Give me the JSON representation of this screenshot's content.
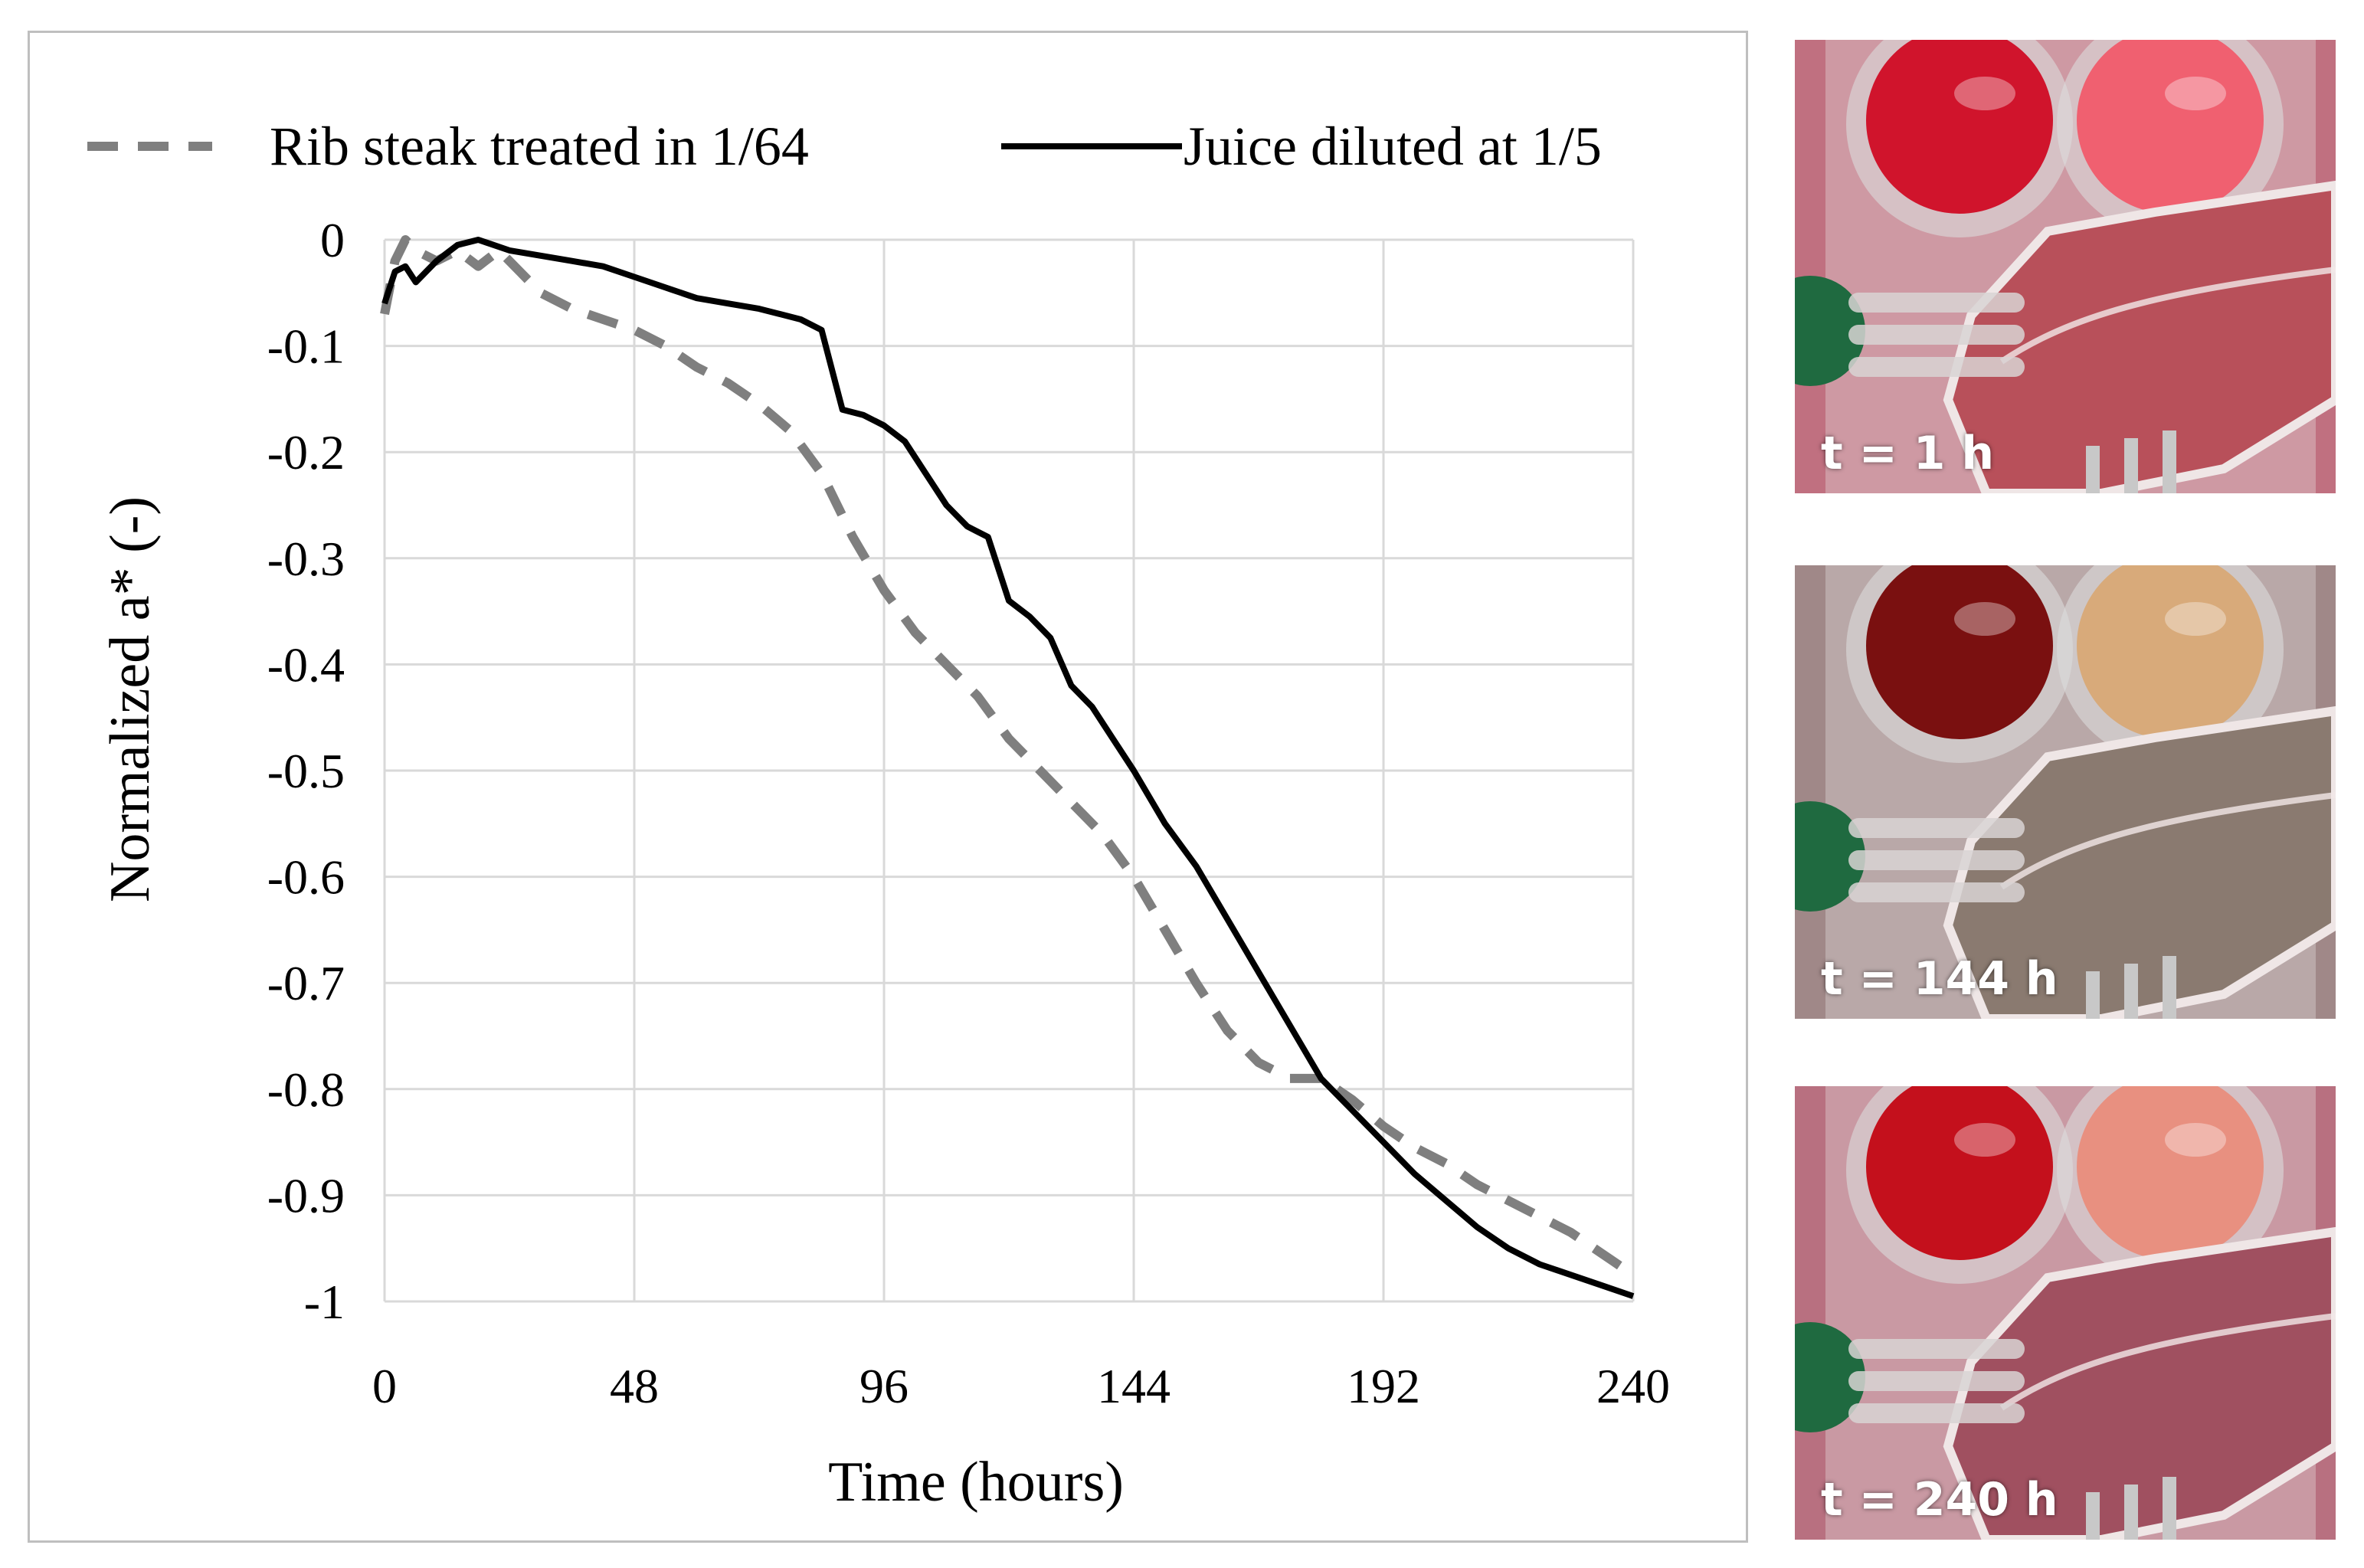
{
  "chart_data": {
    "type": "line",
    "title": "",
    "xlabel": "Time (hours)",
    "ylabel": "Normalized a* (-)",
    "xlim": [
      0,
      240
    ],
    "ylim": [
      -1,
      0
    ],
    "xticks": [
      0,
      48,
      96,
      144,
      192,
      240
    ],
    "yticks": [
      0,
      -0.1,
      -0.2,
      -0.3,
      -0.4,
      -0.5,
      -0.6,
      -0.7,
      -0.8,
      -0.9,
      -1
    ],
    "ytick_labels": [
      "0",
      "-0.1",
      "-0.2",
      "-0.3",
      "-0.4",
      "-0.5",
      "-0.6",
      "-0.7",
      "-0.8",
      "-0.9",
      "-1"
    ],
    "grid": true,
    "legend_position": "top",
    "series": [
      {
        "name": "Rib steak treated in 1/64",
        "style": "dashed",
        "color": "#7f7f7f",
        "x": [
          0,
          2,
          4,
          6,
          10,
          14,
          18,
          22,
          26,
          30,
          36,
          42,
          48,
          54,
          60,
          66,
          72,
          78,
          84,
          90,
          96,
          102,
          108,
          114,
          120,
          126,
          132,
          138,
          144,
          150,
          156,
          162,
          168,
          174,
          180,
          186,
          192,
          198,
          204,
          210,
          216,
          222,
          228,
          234,
          240
        ],
        "y": [
          -0.07,
          -0.02,
          0.0,
          -0.01,
          -0.02,
          -0.01,
          -0.025,
          -0.01,
          -0.03,
          -0.05,
          -0.065,
          -0.075,
          -0.085,
          -0.1,
          -0.12,
          -0.135,
          -0.155,
          -0.18,
          -0.22,
          -0.28,
          -0.33,
          -0.37,
          -0.4,
          -0.43,
          -0.47,
          -0.5,
          -0.53,
          -0.56,
          -0.6,
          -0.65,
          -0.7,
          -0.745,
          -0.775,
          -0.79,
          -0.79,
          -0.81,
          -0.835,
          -0.855,
          -0.87,
          -0.89,
          -0.905,
          -0.92,
          -0.935,
          -0.955,
          -0.975
        ]
      },
      {
        "name": "Juice diluted at 1/5",
        "style": "solid",
        "color": "#000000",
        "x": [
          0,
          2,
          4,
          6,
          8,
          10,
          14,
          18,
          24,
          30,
          36,
          42,
          48,
          54,
          60,
          66,
          72,
          76,
          80,
          84,
          88,
          92,
          96,
          100,
          104,
          108,
          112,
          116,
          120,
          124,
          128,
          132,
          136,
          140,
          144,
          150,
          156,
          162,
          168,
          174,
          180,
          186,
          192,
          198,
          204,
          210,
          216,
          222,
          228,
          234,
          240
        ],
        "y": [
          -0.06,
          -0.03,
          -0.025,
          -0.04,
          -0.03,
          -0.02,
          -0.005,
          0.0,
          -0.01,
          -0.015,
          -0.02,
          -0.025,
          -0.035,
          -0.045,
          -0.055,
          -0.06,
          -0.065,
          -0.07,
          -0.075,
          -0.085,
          -0.16,
          -0.165,
          -0.175,
          -0.19,
          -0.22,
          -0.25,
          -0.27,
          -0.28,
          -0.34,
          -0.355,
          -0.375,
          -0.42,
          -0.44,
          -0.47,
          -0.5,
          -0.55,
          -0.59,
          -0.64,
          -0.69,
          -0.74,
          -0.79,
          -0.82,
          -0.85,
          -0.88,
          -0.905,
          -0.93,
          -0.95,
          -0.965,
          -0.975,
          -0.985,
          -0.995
        ]
      }
    ]
  },
  "photos": [
    {
      "label": "t = 1 h",
      "time_hours": 1,
      "dish_left_color": "#d0142c",
      "dish_right_color": "#f06070",
      "meat_color": "#b8505a",
      "background_color": "#c07080"
    },
    {
      "label": "t = 144 h",
      "time_hours": 144,
      "dish_left_color": "#7a1010",
      "dish_right_color": "#d8aa7a",
      "meat_color": "#8a7a70",
      "background_color": "#a08888"
    },
    {
      "label": "t = 240 h",
      "time_hours": 240,
      "dish_left_color": "#c4101c",
      "dish_right_color": "#e89080",
      "meat_color": "#a05060",
      "background_color": "#b87080"
    }
  ]
}
